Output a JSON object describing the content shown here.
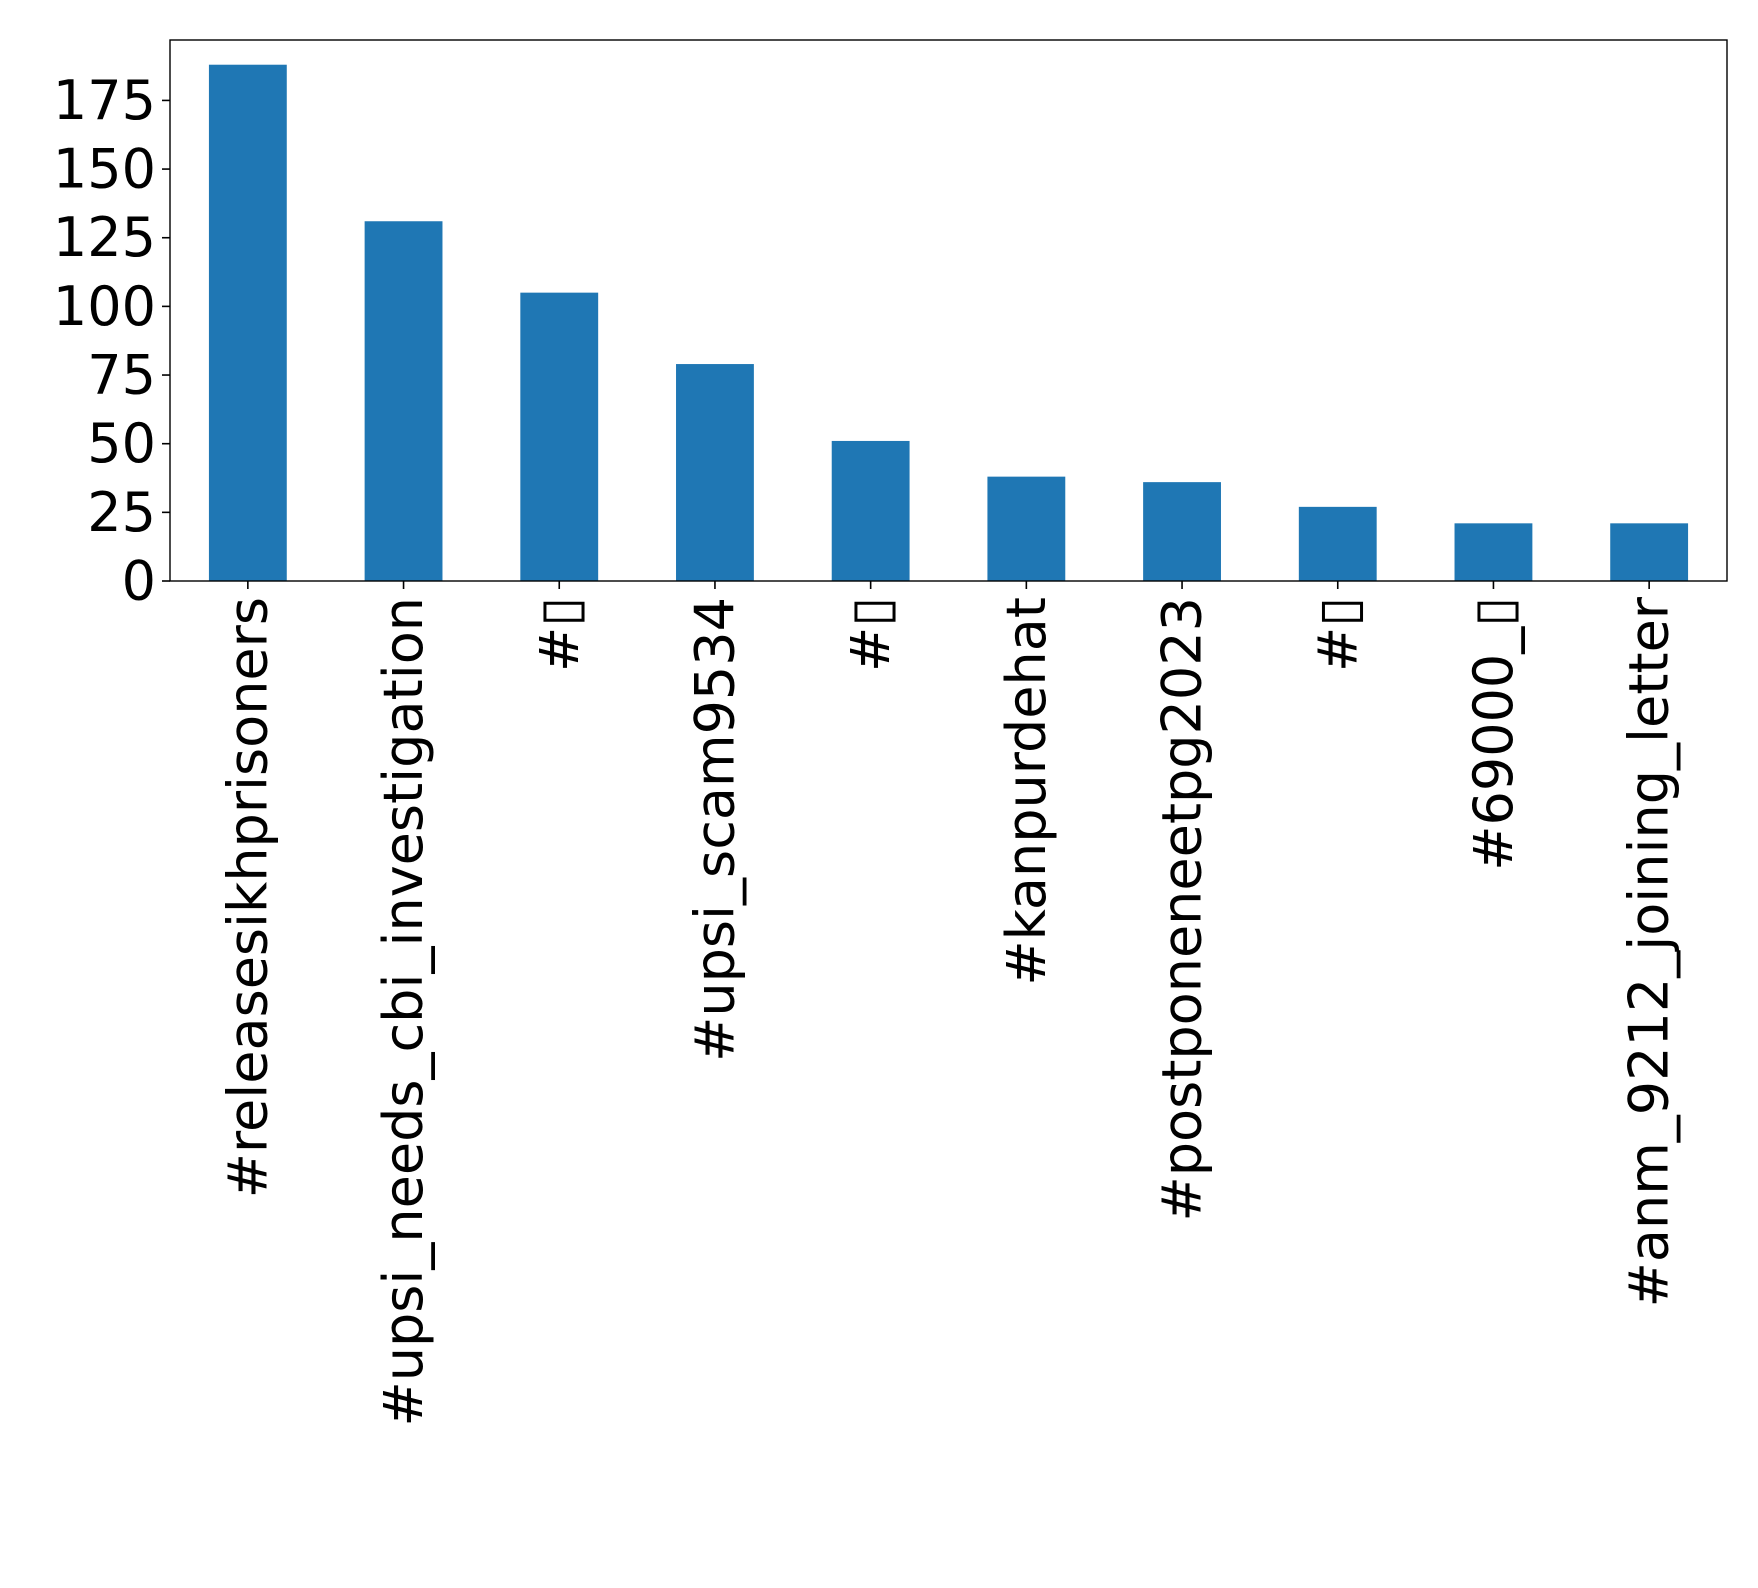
{
  "chart_data": {
    "type": "bar",
    "title": "",
    "xlabel": "",
    "ylabel": "",
    "categories": [
      "#releasesikhprisoners",
      "#upsi_needs_cbi_investigation",
      "#▯",
      "#upsi_scam9534",
      "#▯",
      "#kanpurdehat",
      "#postponeneetpg2023",
      "#▯",
      "#69000_▯",
      "#anm_9212_joining_letter"
    ],
    "values": [
      188,
      131,
      105,
      79,
      51,
      38,
      36,
      27,
      21,
      21
    ],
    "yticks": [
      0,
      25,
      50,
      75,
      100,
      125,
      150,
      175
    ],
    "ylim": [
      0,
      197
    ],
    "grid": false,
    "legend": "none",
    "bar_color": "#1f77b4"
  }
}
